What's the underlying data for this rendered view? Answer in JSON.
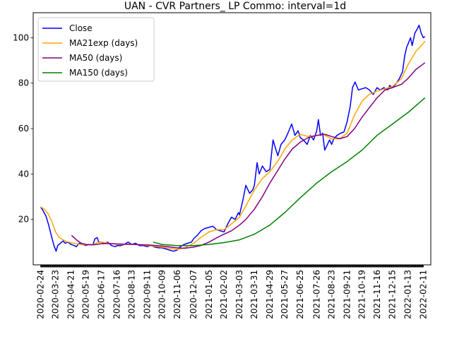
{
  "chart_data": {
    "type": "line",
    "title": "UAN - CVR Partners_ LP Commo: interval=1d",
    "xlabel": "",
    "ylabel": "",
    "x_range": [
      "2020-02-10",
      "2022-02-25"
    ],
    "ylim": [
      0,
      111
    ],
    "grid": false,
    "legend_position": "top-left",
    "x_ticks": [
      "2020-02-24",
      "2020-03-23",
      "2020-04-21",
      "2020-05-19",
      "2020-06-17",
      "2020-07-16",
      "2020-08-13",
      "2020-09-11",
      "2020-10-09",
      "2020-11-06",
      "2020-12-07",
      "2021-01-05",
      "2021-02-02",
      "2021-03-03",
      "2021-03-31",
      "2021-04-29",
      "2021-05-27",
      "2021-06-25",
      "2021-07-26",
      "2021-08-23",
      "2021-09-21",
      "2021-10-19",
      "2021-11-16",
      "2021-12-15",
      "2022-01-13",
      "2022-02-11"
    ],
    "y_ticks": [
      20,
      40,
      60,
      80,
      100
    ],
    "series": [
      {
        "name": "Close",
        "color": "#0000ff",
        "points": [
          [
            "2020-02-24",
            25.5
          ],
          [
            "2020-02-28",
            24.0
          ],
          [
            "2020-03-05",
            21.5
          ],
          [
            "2020-03-10",
            17.5
          ],
          [
            "2020-03-16",
            12.0
          ],
          [
            "2020-03-20",
            8.5
          ],
          [
            "2020-03-24",
            6.0
          ],
          [
            "2020-03-27",
            8.5
          ],
          [
            "2020-04-01",
            9.5
          ],
          [
            "2020-04-06",
            10.5
          ],
          [
            "2020-04-10",
            9.5
          ],
          [
            "2020-04-15",
            10.0
          ],
          [
            "2020-04-21",
            9.0
          ],
          [
            "2020-04-27",
            8.5
          ],
          [
            "2020-05-01",
            8.0
          ],
          [
            "2020-05-06",
            9.5
          ],
          [
            "2020-05-12",
            9.0
          ],
          [
            "2020-05-19",
            8.5
          ],
          [
            "2020-05-26",
            9.0
          ],
          [
            "2020-06-01",
            8.8
          ],
          [
            "2020-06-05",
            11.5
          ],
          [
            "2020-06-09",
            12.0
          ],
          [
            "2020-06-12",
            10.0
          ],
          [
            "2020-06-17",
            10.0
          ],
          [
            "2020-06-22",
            9.5
          ],
          [
            "2020-06-29",
            10.0
          ],
          [
            "2020-07-06",
            8.5
          ],
          [
            "2020-07-13",
            8.0
          ],
          [
            "2020-07-16",
            8.5
          ],
          [
            "2020-07-23",
            8.5
          ],
          [
            "2020-07-30",
            9.0
          ],
          [
            "2020-08-06",
            10.0
          ],
          [
            "2020-08-13",
            9.0
          ],
          [
            "2020-08-20",
            9.5
          ],
          [
            "2020-08-27",
            8.5
          ],
          [
            "2020-09-03",
            8.5
          ],
          [
            "2020-09-11",
            8.0
          ],
          [
            "2020-09-18",
            8.5
          ],
          [
            "2020-09-25",
            7.8
          ],
          [
            "2020-10-02",
            7.5
          ],
          [
            "2020-10-09",
            7.5
          ],
          [
            "2020-10-16",
            7.0
          ],
          [
            "2020-10-23",
            6.5
          ],
          [
            "2020-10-30",
            6.0
          ],
          [
            "2020-11-06",
            6.5
          ],
          [
            "2020-11-12",
            8.0
          ],
          [
            "2020-11-19",
            9.0
          ],
          [
            "2020-11-26",
            9.5
          ],
          [
            "2020-12-03",
            10.0
          ],
          [
            "2020-12-07",
            11.5
          ],
          [
            "2020-12-14",
            13.0
          ],
          [
            "2020-12-21",
            15.0
          ],
          [
            "2020-12-28",
            16.0
          ],
          [
            "2021-01-05",
            16.5
          ],
          [
            "2021-01-12",
            17.0
          ],
          [
            "2021-01-19",
            15.5
          ],
          [
            "2021-01-26",
            15.0
          ],
          [
            "2021-02-02",
            14.5
          ],
          [
            "2021-02-09",
            18.0
          ],
          [
            "2021-02-16",
            21.0
          ],
          [
            "2021-02-23",
            20.0
          ],
          [
            "2021-03-01",
            23.0
          ],
          [
            "2021-03-03",
            22.0
          ],
          [
            "2021-03-09",
            28.0
          ],
          [
            "2021-03-15",
            35.0
          ],
          [
            "2021-03-22",
            31.5
          ],
          [
            "2021-03-28",
            33.0
          ],
          [
            "2021-03-31",
            35.0
          ],
          [
            "2021-04-05",
            45.0
          ],
          [
            "2021-04-09",
            40.0
          ],
          [
            "2021-04-15",
            43.5
          ],
          [
            "2021-04-22",
            41.0
          ],
          [
            "2021-04-29",
            42.0
          ],
          [
            "2021-05-05",
            55.0
          ],
          [
            "2021-05-10",
            51.0
          ],
          [
            "2021-05-14",
            48.0
          ],
          [
            "2021-05-20",
            53.0
          ],
          [
            "2021-05-27",
            55.0
          ],
          [
            "2021-06-02",
            58.0
          ],
          [
            "2021-06-09",
            62.0
          ],
          [
            "2021-06-15",
            57.0
          ],
          [
            "2021-06-21",
            59.0
          ],
          [
            "2021-06-25",
            56.0
          ],
          [
            "2021-07-01",
            55.0
          ],
          [
            "2021-07-08",
            53.0
          ],
          [
            "2021-07-14",
            57.0
          ],
          [
            "2021-07-20",
            55.0
          ],
          [
            "2021-07-26",
            59.0
          ],
          [
            "2021-07-29",
            64.0
          ],
          [
            "2021-08-02",
            57.0
          ],
          [
            "2021-08-06",
            58.0
          ],
          [
            "2021-08-10",
            50.5
          ],
          [
            "2021-08-13",
            52.0
          ],
          [
            "2021-08-19",
            55.0
          ],
          [
            "2021-08-23",
            53.0
          ],
          [
            "2021-08-27",
            55.5
          ],
          [
            "2021-09-02",
            57.0
          ],
          [
            "2021-09-09",
            58.0
          ],
          [
            "2021-09-15",
            58.5
          ],
          [
            "2021-09-21",
            63.0
          ],
          [
            "2021-09-27",
            70.0
          ],
          [
            "2021-10-01",
            78.0
          ],
          [
            "2021-10-06",
            80.5
          ],
          [
            "2021-10-12",
            77.0
          ],
          [
            "2021-10-19",
            77.5
          ],
          [
            "2021-10-26",
            78.0
          ],
          [
            "2021-11-02",
            77.0
          ],
          [
            "2021-11-09",
            75.0
          ],
          [
            "2021-11-16",
            78.0
          ],
          [
            "2021-11-22",
            77.0
          ],
          [
            "2021-11-29",
            78.0
          ],
          [
            "2021-12-06",
            77.0
          ],
          [
            "2021-12-10",
            79.0
          ],
          [
            "2021-12-15",
            78.0
          ],
          [
            "2021-12-21",
            79.5
          ],
          [
            "2021-12-28",
            82.0
          ],
          [
            "2022-01-03",
            85.0
          ],
          [
            "2022-01-07",
            92.0
          ],
          [
            "2022-01-11",
            96.0
          ],
          [
            "2022-01-13",
            97.0
          ],
          [
            "2022-01-18",
            100.0
          ],
          [
            "2022-01-21",
            96.5
          ],
          [
            "2022-01-26",
            102.0
          ],
          [
            "2022-01-31",
            104.0
          ],
          [
            "2022-02-03",
            105.5
          ],
          [
            "2022-02-07",
            102.0
          ],
          [
            "2022-02-11",
            100.0
          ],
          [
            "2022-02-14",
            100.5
          ]
        ]
      },
      {
        "name": "MA21exp (days)",
        "color": "#ffa500",
        "points": [
          [
            "2020-02-24",
            25.5
          ],
          [
            "2020-03-02",
            24.5
          ],
          [
            "2020-03-09",
            22.5
          ],
          [
            "2020-03-16",
            19.0
          ],
          [
            "2020-03-23",
            14.5
          ],
          [
            "2020-03-30",
            12.0
          ],
          [
            "2020-04-06",
            11.0
          ],
          [
            "2020-04-13",
            10.2
          ],
          [
            "2020-04-21",
            9.8
          ],
          [
            "2020-05-01",
            9.3
          ],
          [
            "2020-05-10",
            9.0
          ],
          [
            "2020-05-19",
            8.8
          ],
          [
            "2020-06-01",
            8.9
          ],
          [
            "2020-06-10",
            9.8
          ],
          [
            "2020-06-17",
            10.0
          ],
          [
            "2020-07-01",
            9.5
          ],
          [
            "2020-07-16",
            9.0
          ],
          [
            "2020-08-01",
            9.0
          ],
          [
            "2020-08-13",
            9.1
          ],
          [
            "2020-09-01",
            8.8
          ],
          [
            "2020-09-11",
            8.5
          ],
          [
            "2020-10-01",
            8.0
          ],
          [
            "2020-10-09",
            7.8
          ],
          [
            "2020-10-25",
            7.2
          ],
          [
            "2020-11-06",
            6.8
          ],
          [
            "2020-11-20",
            7.5
          ],
          [
            "2020-12-07",
            9.5
          ],
          [
            "2020-12-20",
            12.0
          ],
          [
            "2021-01-05",
            14.5
          ],
          [
            "2021-01-20",
            15.5
          ],
          [
            "2021-02-02",
            15.5
          ],
          [
            "2021-02-16",
            18.0
          ],
          [
            "2021-03-03",
            21.0
          ],
          [
            "2021-03-15",
            26.0
          ],
          [
            "2021-03-31",
            33.0
          ],
          [
            "2021-04-15",
            38.0
          ],
          [
            "2021-04-29",
            41.0
          ],
          [
            "2021-05-15",
            46.0
          ],
          [
            "2021-05-27",
            51.0
          ],
          [
            "2021-06-10",
            55.0
          ],
          [
            "2021-06-25",
            57.5
          ],
          [
            "2021-07-10",
            56.5
          ],
          [
            "2021-07-26",
            57.0
          ],
          [
            "2021-08-06",
            57.5
          ],
          [
            "2021-08-23",
            55.5
          ],
          [
            "2021-09-07",
            55.5
          ],
          [
            "2021-09-21",
            58.0
          ],
          [
            "2021-10-05",
            66.0
          ],
          [
            "2021-10-19",
            72.0
          ],
          [
            "2021-11-01",
            75.0
          ],
          [
            "2021-11-16",
            76.5
          ],
          [
            "2021-12-01",
            77.5
          ],
          [
            "2021-12-15",
            78.5
          ],
          [
            "2022-01-01",
            82.0
          ],
          [
            "2022-01-13",
            88.0
          ],
          [
            "2022-01-28",
            94.0
          ],
          [
            "2022-02-11",
            97.5
          ],
          [
            "2022-02-14",
            98.5
          ]
        ]
      },
      {
        "name": "MA50 (days)",
        "color": "#800080",
        "points": [
          [
            "2020-04-22",
            13.0
          ],
          [
            "2020-05-01",
            11.0
          ],
          [
            "2020-05-10",
            9.5
          ],
          [
            "2020-05-19",
            9.0
          ],
          [
            "2020-06-01",
            8.8
          ],
          [
            "2020-06-17",
            9.3
          ],
          [
            "2020-07-01",
            9.4
          ],
          [
            "2020-07-16",
            9.2
          ],
          [
            "2020-08-01",
            9.1
          ],
          [
            "2020-08-13",
            9.0
          ],
          [
            "2020-09-11",
            8.8
          ],
          [
            "2020-10-09",
            8.3
          ],
          [
            "2020-11-06",
            7.5
          ],
          [
            "2020-11-20",
            7.3
          ],
          [
            "2020-12-07",
            7.8
          ],
          [
            "2020-12-20",
            8.5
          ],
          [
            "2021-01-05",
            10.0
          ],
          [
            "2021-01-20",
            12.0
          ],
          [
            "2021-02-02",
            13.5
          ],
          [
            "2021-02-16",
            15.0
          ],
          [
            "2021-03-03",
            17.5
          ],
          [
            "2021-03-15",
            20.0
          ],
          [
            "2021-03-31",
            24.5
          ],
          [
            "2021-04-15",
            30.0
          ],
          [
            "2021-04-29",
            36.0
          ],
          [
            "2021-05-15",
            42.0
          ],
          [
            "2021-05-27",
            46.5
          ],
          [
            "2021-06-10",
            51.0
          ],
          [
            "2021-06-25",
            54.0
          ],
          [
            "2021-07-10",
            56.0
          ],
          [
            "2021-07-26",
            57.0
          ],
          [
            "2021-08-10",
            57.5
          ],
          [
            "2021-08-23",
            56.5
          ],
          [
            "2021-09-07",
            55.5
          ],
          [
            "2021-09-21",
            56.5
          ],
          [
            "2021-10-05",
            60.0
          ],
          [
            "2021-10-19",
            65.0
          ],
          [
            "2021-11-01",
            69.0
          ],
          [
            "2021-11-16",
            73.5
          ],
          [
            "2021-12-01",
            77.0
          ],
          [
            "2021-12-15",
            78.0
          ],
          [
            "2022-01-01",
            79.5
          ],
          [
            "2022-01-13",
            82.0
          ],
          [
            "2022-01-28",
            86.0
          ],
          [
            "2022-02-14",
            89.0
          ]
        ]
      },
      {
        "name": "MA150 (days)",
        "color": "#008000",
        "points": [
          [
            "2020-09-22",
            10.0
          ],
          [
            "2020-10-09",
            9.0
          ],
          [
            "2020-11-06",
            8.5
          ],
          [
            "2020-12-07",
            8.5
          ],
          [
            "2021-01-05",
            9.0
          ],
          [
            "2021-02-02",
            9.8
          ],
          [
            "2021-03-03",
            11.0
          ],
          [
            "2021-03-31",
            13.5
          ],
          [
            "2021-04-29",
            17.5
          ],
          [
            "2021-05-27",
            23.0
          ],
          [
            "2021-06-25",
            29.5
          ],
          [
            "2021-07-26",
            36.0
          ],
          [
            "2021-08-23",
            41.0
          ],
          [
            "2021-09-21",
            45.5
          ],
          [
            "2021-10-19",
            50.5
          ],
          [
            "2021-11-16",
            57.0
          ],
          [
            "2021-12-15",
            62.0
          ],
          [
            "2022-01-13",
            67.0
          ],
          [
            "2022-02-14",
            73.5
          ]
        ]
      }
    ]
  }
}
